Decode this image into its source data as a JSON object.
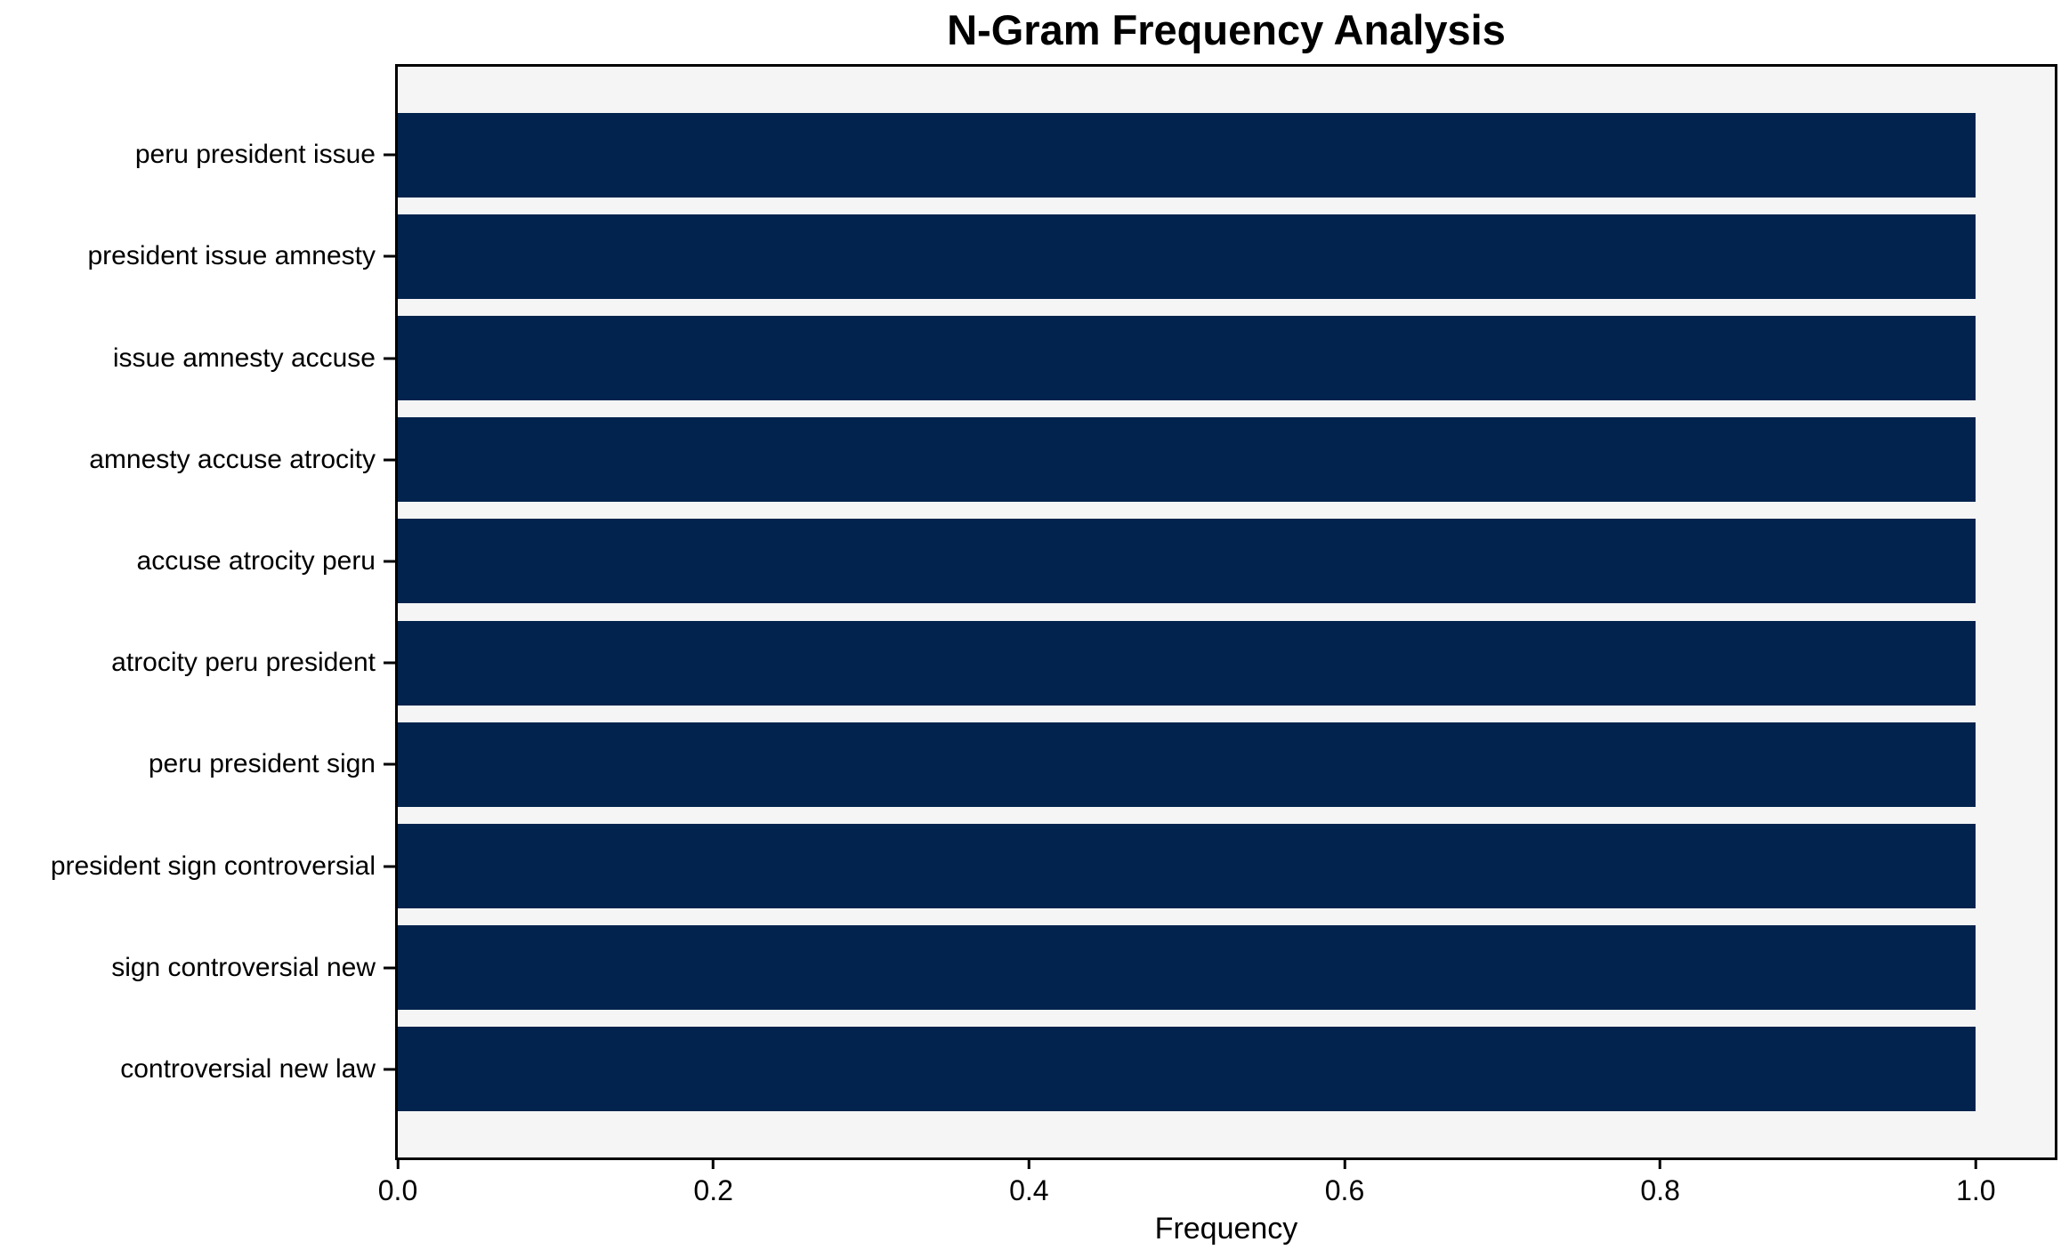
{
  "chart_data": {
    "type": "bar",
    "orientation": "horizontal",
    "title": "N-Gram Frequency Analysis",
    "xlabel": "Frequency",
    "ylabel": "",
    "categories": [
      "peru president issue",
      "president issue amnesty",
      "issue amnesty accuse",
      "amnesty accuse atrocity",
      "accuse atrocity peru",
      "atrocity peru president",
      "peru president sign",
      "president sign controversial",
      "sign controversial new",
      "controversial new law"
    ],
    "values": [
      1.0,
      1.0,
      1.0,
      1.0,
      1.0,
      1.0,
      1.0,
      1.0,
      1.0,
      1.0
    ],
    "xlim": [
      0,
      1.05
    ],
    "xticks": [
      0.0,
      0.2,
      0.4,
      0.6,
      0.8,
      1.0
    ],
    "xtick_labels": [
      "0.0",
      "0.2",
      "0.4",
      "0.6",
      "0.8",
      "1.0"
    ],
    "grid": false,
    "legend": null,
    "colors": {
      "bar": "#02234d",
      "plot_background": "#f5f5f5",
      "figure_background": "#ffffff",
      "spine": "#000000",
      "text": "#000000"
    }
  }
}
